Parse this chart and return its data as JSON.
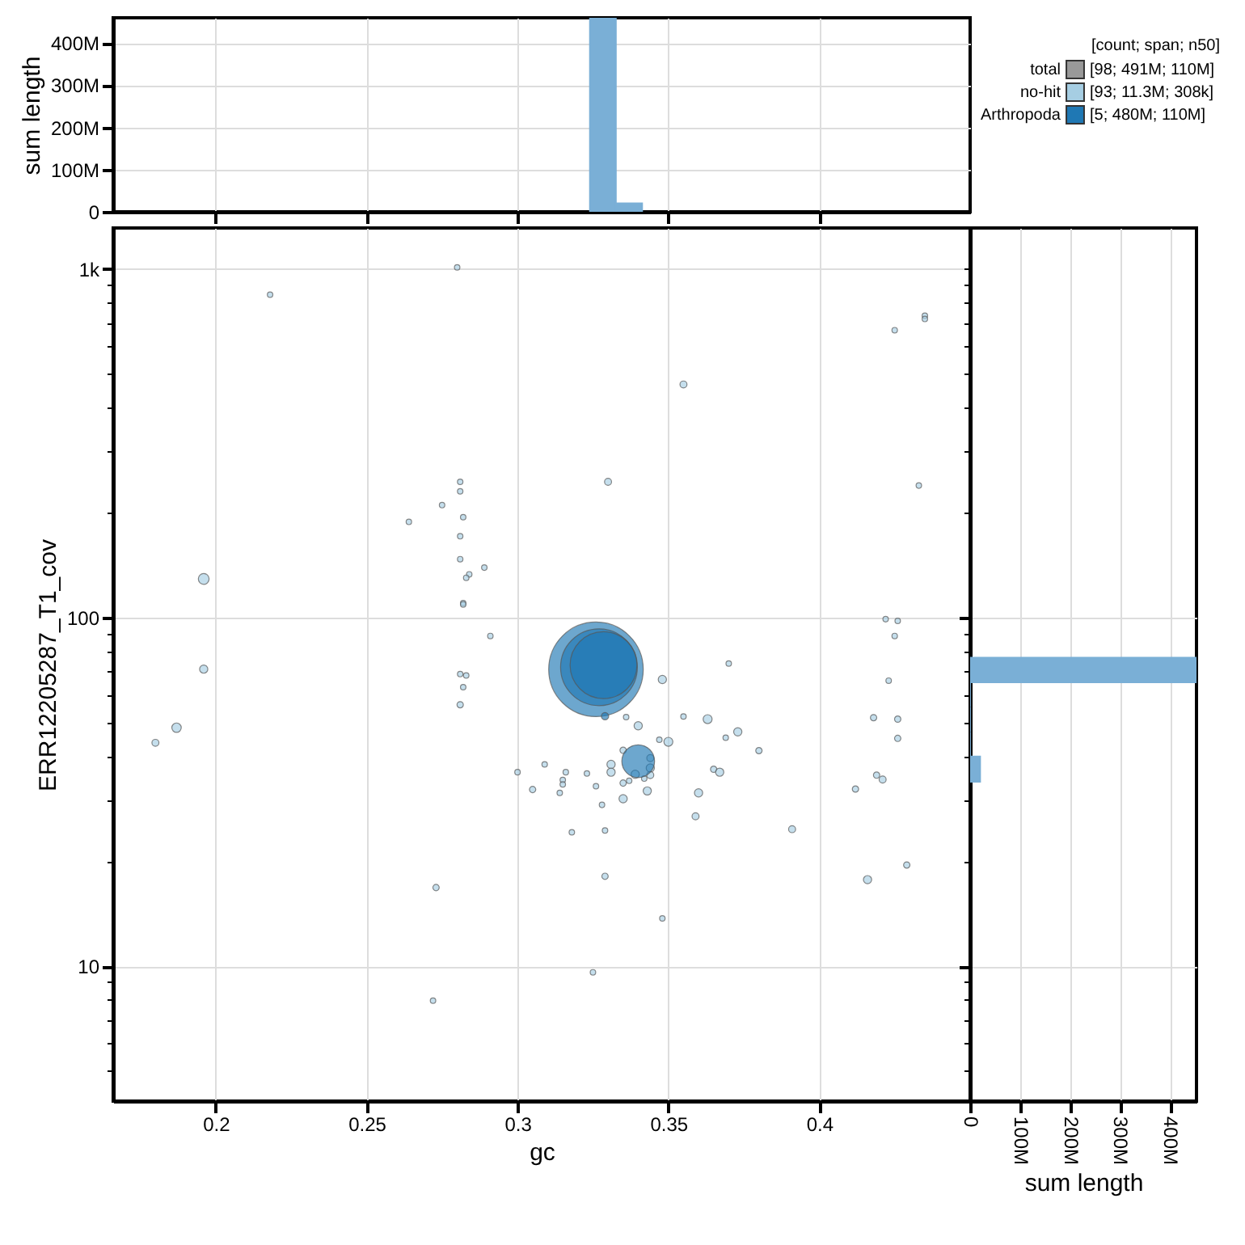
{
  "chart_data": [
    {
      "type": "histogram",
      "bins": [
        0.324,
        0.3326,
        0.3413
      ],
      "series": [
        {
          "color": "#7aafd6",
          "values": [
            460000000,
            20000000
          ]
        }
      ],
      "xlim": [
        0.166,
        0.45
      ],
      "xticks": [
        0.2,
        0.25,
        0.3,
        0.35,
        0.4
      ],
      "ylim": [
        0,
        460000000
      ],
      "yticks": [
        0,
        {
          "value": 100000000,
          "label": "100M"
        },
        {
          "value": 200000000,
          "label": "200M"
        },
        {
          "value": 300000000,
          "label": "300M"
        },
        {
          "value": 400000000,
          "label": "400M"
        }
      ],
      "ylabel": "sum length",
      "grid": true,
      "tick_labels": "y"
    },
    {
      "type": "bubble",
      "xlabel": "gc",
      "ylabel": "ERR12205287_T1_cov",
      "log": "y",
      "grid": true,
      "marker": "circle",
      "legend": "top right",
      "legend_title": "[count; span; n50]",
      "annotations": [
        "[98; 491M; 110M]",
        "[93; 11.3M; 308k]",
        "[5; 480M; 110M]"
      ],
      "xlim": [
        0.166,
        0.45
      ],
      "xticks": [
        0.2,
        0.25,
        0.3,
        0.35,
        0.4
      ],
      "ylim": [
        4.1,
        1310
      ],
      "yticks": [
        {
          "value": 5,
          "label": null
        },
        {
          "value": 6,
          "label": null
        },
        {
          "value": 7,
          "label": null
        },
        {
          "value": 8,
          "label": null
        },
        {
          "value": 9,
          "label": null
        },
        10,
        {
          "value": 20,
          "label": null
        },
        {
          "value": 30,
          "label": null
        },
        {
          "value": 40,
          "label": null
        },
        {
          "value": 50,
          "label": null
        },
        {
          "value": 60,
          "label": null
        },
        {
          "value": 70,
          "label": null
        },
        {
          "value": 80,
          "label": null
        },
        {
          "value": 90,
          "label": null
        },
        100,
        {
          "value": 200,
          "label": null
        },
        {
          "value": 300,
          "label": null
        },
        {
          "value": 400,
          "label": null
        },
        {
          "value": 500,
          "label": null
        },
        {
          "value": 600,
          "label": null
        },
        {
          "value": 700,
          "label": null
        },
        {
          "value": 800,
          "label": null
        },
        {
          "value": 900,
          "label": null
        },
        {
          "value": 1000,
          "label": "1k"
        }
      ],
      "series": [
        {
          "name": "total",
          "color": "#999999"
        },
        {
          "name": "no-hit",
          "color": "#a6cee3",
          "x": [
            0.28,
            0.218,
            0.281,
            0.281,
            0.275,
            0.282,
            0.264,
            0.281,
            0.281,
            0.289,
            0.284,
            0.283,
            0.196,
            0.282,
            0.282,
            0.291,
            0.196,
            0.281,
            0.283,
            0.435,
            0.435,
            0.425,
            0.355,
            0.33,
            0.433,
            0.422,
            0.426,
            0.425,
            0.37,
            0.348,
            0.187,
            0.18,
            0.282,
            0.281,
            0.336,
            0.34,
            0.355,
            0.363,
            0.373,
            0.369,
            0.347,
            0.35,
            0.38,
            0.335,
            0.344,
            0.331,
            0.331,
            0.309,
            0.3,
            0.316,
            0.323,
            0.344,
            0.339,
            0.344,
            0.342,
            0.337,
            0.315,
            0.315,
            0.365,
            0.367,
            0.305,
            0.326,
            0.335,
            0.343,
            0.314,
            0.36,
            0.335,
            0.328,
            0.359,
            0.318,
            0.329,
            0.391,
            0.423,
            0.418,
            0.426,
            0.426,
            0.419,
            0.421,
            0.412,
            0.429,
            0.416,
            0.329,
            0.273,
            0.348,
            0.325,
            0.272
          ],
          "values": [
            1010,
            843,
            245,
            230,
            210,
            194,
            188,
            171,
            147,
            139,
            133,
            130,
            129,
            110,
            109,
            88.5,
            71.1,
            68.8,
            68.2,
            734,
            718,
            667,
            466,
            245,
            239,
            98.9,
            97.8,
            88.5,
            73.8,
            66.4,
            48.3,
            43.7,
            63.1,
            56.2,
            51.8,
            48.9,
            52,
            51.1,
            47.0,
            45.2,
            44.6,
            44.0,
            41.5,
            41.6,
            39.5,
            37.9,
            36.0,
            37.9,
            36.0,
            36.0,
            35.7,
            37.0,
            35.5,
            35.3,
            34.5,
            34.0,
            34.2,
            33.2,
            36.7,
            36.0,
            32.1,
            32.8,
            33.5,
            31.8,
            31.4,
            31.4,
            30.2,
            29.0,
            26.9,
            24.2,
            24.5,
            24.7,
            65.9,
            51.6,
            51.1,
            45.0,
            35.3,
            34.3,
            32.2,
            19.5,
            17.7,
            18.1,
            16.8,
            13.7,
            9.6,
            7.96
          ],
          "sizes": [
            0.0034,
            0.0034,
            0.0034,
            0.0034,
            0.0034,
            0.0034,
            0.0034,
            0.0034,
            0.0034,
            0.0034,
            0.0034,
            0.0034,
            0.013,
            0.0034,
            0.0034,
            0.0034,
            0.0076,
            0.0034,
            0.0034,
            0.0034,
            0.0034,
            0.0034,
            0.0055,
            0.0055,
            0.0034,
            0.0034,
            0.0034,
            0.0034,
            0.0034,
            0.0076,
            0.01,
            0.0055,
            0.0034,
            0.0045,
            0.0034,
            0.0076,
            0.0034,
            0.009,
            0.0076,
            0.0034,
            0.0034,
            0.009,
            0.0045,
            0.0045,
            0.0055,
            0.0076,
            0.0076,
            0.0034,
            0.0034,
            0.0034,
            0.0034,
            0.0076,
            0.0076,
            0.0055,
            0.0034,
            0.0034,
            0.0034,
            0.0034,
            0.0045,
            0.0076,
            0.0045,
            0.0034,
            0.0045,
            0.0076,
            0.0034,
            0.0076,
            0.0076,
            0.0034,
            0.0055,
            0.0034,
            0.0034,
            0.0055,
            0.0034,
            0.0045,
            0.0045,
            0.0045,
            0.0045,
            0.0055,
            0.0045,
            0.0045,
            0.0076,
            0.0045,
            0.0045,
            0.0034,
            0.0034,
            0.0034
          ]
        },
        {
          "name": "Arthropoda",
          "color": "#1f78b4",
          "x": [
            0.326,
            0.327,
            0.3285,
            0.34,
            0.329
          ],
          "values": [
            71.0,
            72,
            73,
            38.7,
            52.1
          ],
          "sizes": [
            1,
            0.66,
            0.5,
            0.12,
            0.006
          ]
        }
      ]
    },
    {
      "type": "histogram",
      "orientation": "horizontal",
      "bins": [
        33.8,
        39.9,
        47.0,
        55.3,
        65.2,
        76.7
      ],
      "series": [
        {
          "color": "#7aafd6",
          "values": [
            20000000,
            0,
            0,
            0,
            453000000
          ]
        }
      ],
      "xlim": [
        0,
        453000000
      ],
      "xticks": [
        0,
        {
          "value": 100000000,
          "label": "100M"
        },
        {
          "value": 200000000,
          "label": "200M"
        },
        {
          "value": 300000000,
          "label": "300M"
        },
        {
          "value": 400000000,
          "label": "400M"
        }
      ],
      "ylim": [
        4.1,
        1310
      ],
      "yticks": [
        {
          "value": 5,
          "label": null
        },
        {
          "value": 6,
          "label": null
        },
        {
          "value": 7,
          "label": null
        },
        {
          "value": 8,
          "label": null
        },
        {
          "value": 9,
          "label": null
        },
        10,
        {
          "value": 20,
          "label": null
        },
        {
          "value": 30,
          "label": null
        },
        {
          "value": 40,
          "label": null
        },
        {
          "value": 50,
          "label": null
        },
        {
          "value": 60,
          "label": null
        },
        {
          "value": 70,
          "label": null
        },
        {
          "value": 80,
          "label": null
        },
        {
          "value": 90,
          "label": null
        },
        100,
        {
          "value": 200,
          "label": null
        },
        {
          "value": 300,
          "label": null
        },
        {
          "value": 400,
          "label": null
        },
        {
          "value": 500,
          "label": null
        },
        {
          "value": 600,
          "label": null
        },
        {
          "value": 700,
          "label": null
        },
        {
          "value": 800,
          "label": null
        },
        {
          "value": 900,
          "label": null
        },
        {
          "value": 1000,
          "label": null
        }
      ],
      "log": "y",
      "xlabel": "sum length",
      "grid": true,
      "tick_labels": "x"
    }
  ]
}
